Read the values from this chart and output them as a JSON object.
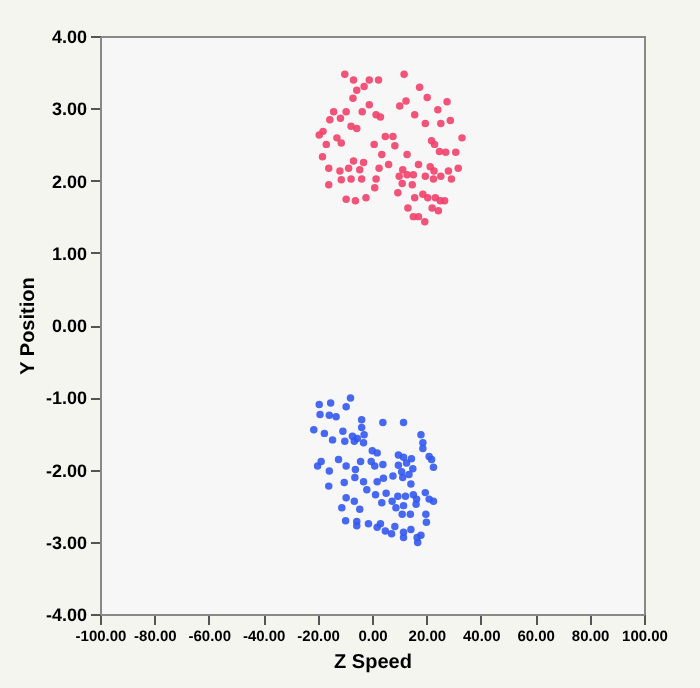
{
  "chart_data": {
    "type": "scatter",
    "xlabel": "Z Speed",
    "ylabel": "Y Position",
    "marker": "circle",
    "grid": false,
    "legend": false,
    "xlim": [
      -100,
      100
    ],
    "ylim": [
      -4,
      4
    ],
    "xticks": [
      {
        "value": -100,
        "label": "-100.00"
      },
      {
        "value": -80,
        "label": "-80.00"
      },
      {
        "value": -60,
        "label": "-60.00"
      },
      {
        "value": -40,
        "label": "-40.00"
      },
      {
        "value": -20,
        "label": "-20.00"
      },
      {
        "value": 0,
        "label": "0.00"
      },
      {
        "value": 20,
        "label": "20.00"
      },
      {
        "value": 40,
        "label": "40.00"
      },
      {
        "value": 60,
        "label": "60.00"
      },
      {
        "value": 80,
        "label": "80.00"
      },
      {
        "value": 100,
        "label": "100.00"
      }
    ],
    "yticks": [
      {
        "value": -4,
        "label": "-4.00"
      },
      {
        "value": -3,
        "label": "-3.00"
      },
      {
        "value": -2,
        "label": "-2.00"
      },
      {
        "value": -1,
        "label": "-1.00"
      },
      {
        "value": 0,
        "label": "0.00"
      },
      {
        "value": 1,
        "label": "1.00"
      },
      {
        "value": 2,
        "label": "2.00"
      },
      {
        "value": 3,
        "label": "3.00"
      },
      {
        "value": 4,
        "label": "4.00"
      }
    ],
    "series": [
      {
        "color": "#f0406a",
        "x": [
          -10.0,
          -6.8,
          -1.0,
          2.4,
          11.8,
          -5.6,
          -2.9,
          -7.0,
          -1.0,
          -3.6,
          -9.5,
          -11.6,
          -14.1,
          1.5,
          3.1,
          10.2,
          12.5,
          17.5,
          20.3,
          24.2,
          27.6,
          28.8,
          15.7,
          19.6,
          25.3,
          -15.5,
          -19.4,
          -18.0,
          -16.8,
          -12.9,
          -11.3,
          -7.7,
          -5.6,
          4.9,
          7.7,
          8.4,
          33.1,
          21.9,
          23.0,
          24.8,
          27.1,
          30.8,
          -18.2,
          -15.9,
          -11.8,
          -6.8,
          -3.1,
          0.8,
          3.6,
          2.6,
          6.1,
          12.9,
          17.1,
          11.3,
          12.9,
          15.2,
          21.4,
          22.8,
          28.1,
          31.7,
          -8.6,
          -4.5,
          -15.9,
          -11.3,
          -7.7,
          -3.8,
          1.5,
          1.0,
          10.0,
          11.1,
          14.8,
          19.6,
          22.6,
          25.3,
          29.2,
          -9.5,
          -6.1,
          -2.2,
          9.5,
          15.7,
          18.7,
          20.5,
          23.3,
          26.7,
          13.2,
          15.2,
          17.1,
          19.4,
          22.1,
          24.4,
          25.1
        ],
        "values": [
          3.47,
          3.39,
          3.39,
          3.39,
          3.47,
          3.25,
          3.3,
          3.14,
          3.05,
          2.95,
          2.95,
          2.86,
          2.95,
          2.91,
          2.88,
          3.03,
          3.1,
          3.29,
          3.15,
          2.98,
          3.09,
          2.83,
          2.91,
          2.79,
          2.79,
          2.84,
          2.63,
          2.68,
          2.5,
          2.59,
          2.52,
          2.75,
          2.72,
          2.61,
          2.61,
          2.48,
          2.59,
          2.55,
          2.5,
          2.4,
          2.39,
          2.39,
          2.33,
          2.17,
          2.13,
          2.27,
          2.25,
          2.5,
          2.36,
          2.17,
          2.22,
          2.36,
          2.22,
          2.15,
          2.08,
          2.08,
          2.19,
          2.13,
          2.13,
          2.17,
          2.17,
          2.15,
          1.94,
          2.01,
          2.02,
          2.02,
          2.02,
          1.9,
          2.06,
          1.96,
          1.94,
          2.06,
          2.02,
          2.06,
          2.02,
          1.74,
          1.72,
          1.76,
          1.83,
          1.76,
          1.81,
          1.76,
          1.76,
          1.72,
          1.62,
          1.5,
          1.5,
          1.43,
          1.62,
          1.58,
          1.72
        ]
      },
      {
        "color": "#3358ee",
        "x": [
          -7.9,
          -15.2,
          -19.4,
          -9.5,
          -19.1,
          -15.7,
          -13.2,
          -3.8,
          4.0,
          11.6,
          -21.4,
          -17.5,
          -10.7,
          -7.2,
          -5.4,
          -2.9,
          -3.8,
          -14.5,
          -10.0,
          -6.5,
          -3.1,
          18.0,
          18.7,
          18.7,
          0.1,
          1.9,
          9.7,
          11.6,
          14.5,
          12.7,
          21.0,
          21.9,
          22.6,
          -20.0,
          -15.7,
          -18.7,
          -12.3,
          -9.5,
          -6.1,
          -4.2,
          -0.3,
          1.0,
          4.0,
          9.7,
          10.9,
          15.0,
          13.6,
          -15.9,
          -10.2,
          -6.3,
          -3.1,
          1.9,
          4.2,
          7.7,
          11.3,
          14.3,
          -1.9,
          1.3,
          5.2,
          9.5,
          12.3,
          15.2,
          19.6,
          22.6,
          -9.5,
          -6.5,
          -11.1,
          -4.5,
          3.6,
          7.4,
          8.8,
          11.6,
          16.2,
          16.4,
          21.0,
          11.1,
          14.1,
          19.8,
          -9.7,
          -5.6,
          -1.3,
          3.1,
          4.9,
          8.4,
          11.6,
          14.3,
          20.0,
          -5.6,
          1.9,
          7.2,
          11.6,
          16.6,
          18.0,
          16.8
        ],
        "values": [
          -1.01,
          -1.08,
          -1.1,
          -1.13,
          -1.24,
          -1.25,
          -1.27,
          -1.31,
          -1.35,
          -1.35,
          -1.45,
          -1.5,
          -1.47,
          -1.54,
          -1.57,
          -1.52,
          -1.42,
          -1.59,
          -1.61,
          -1.61,
          -1.63,
          -1.52,
          -1.63,
          -1.71,
          -1.74,
          -1.77,
          -1.8,
          -1.83,
          -1.85,
          -1.91,
          -1.82,
          -1.86,
          -1.97,
          -1.95,
          -2.02,
          -1.89,
          -1.86,
          -1.95,
          -2.0,
          -1.89,
          -1.89,
          -1.95,
          -1.93,
          -1.94,
          -2.03,
          -1.99,
          -2.07,
          -2.23,
          -2.18,
          -2.11,
          -2.17,
          -2.17,
          -2.12,
          -2.09,
          -2.11,
          -2.2,
          -2.28,
          -2.35,
          -2.33,
          -2.37,
          -2.37,
          -2.35,
          -2.32,
          -2.44,
          -2.39,
          -2.44,
          -2.53,
          -2.55,
          -2.46,
          -2.44,
          -2.53,
          -2.5,
          -2.48,
          -2.41,
          -2.41,
          -2.62,
          -2.62,
          -2.62,
          -2.71,
          -2.72,
          -2.75,
          -2.75,
          -2.85,
          -2.79,
          -2.87,
          -2.83,
          -2.73,
          -2.78,
          -2.8,
          -2.89,
          -2.94,
          -2.94,
          -2.91,
          -3.01
        ]
      }
    ]
  }
}
